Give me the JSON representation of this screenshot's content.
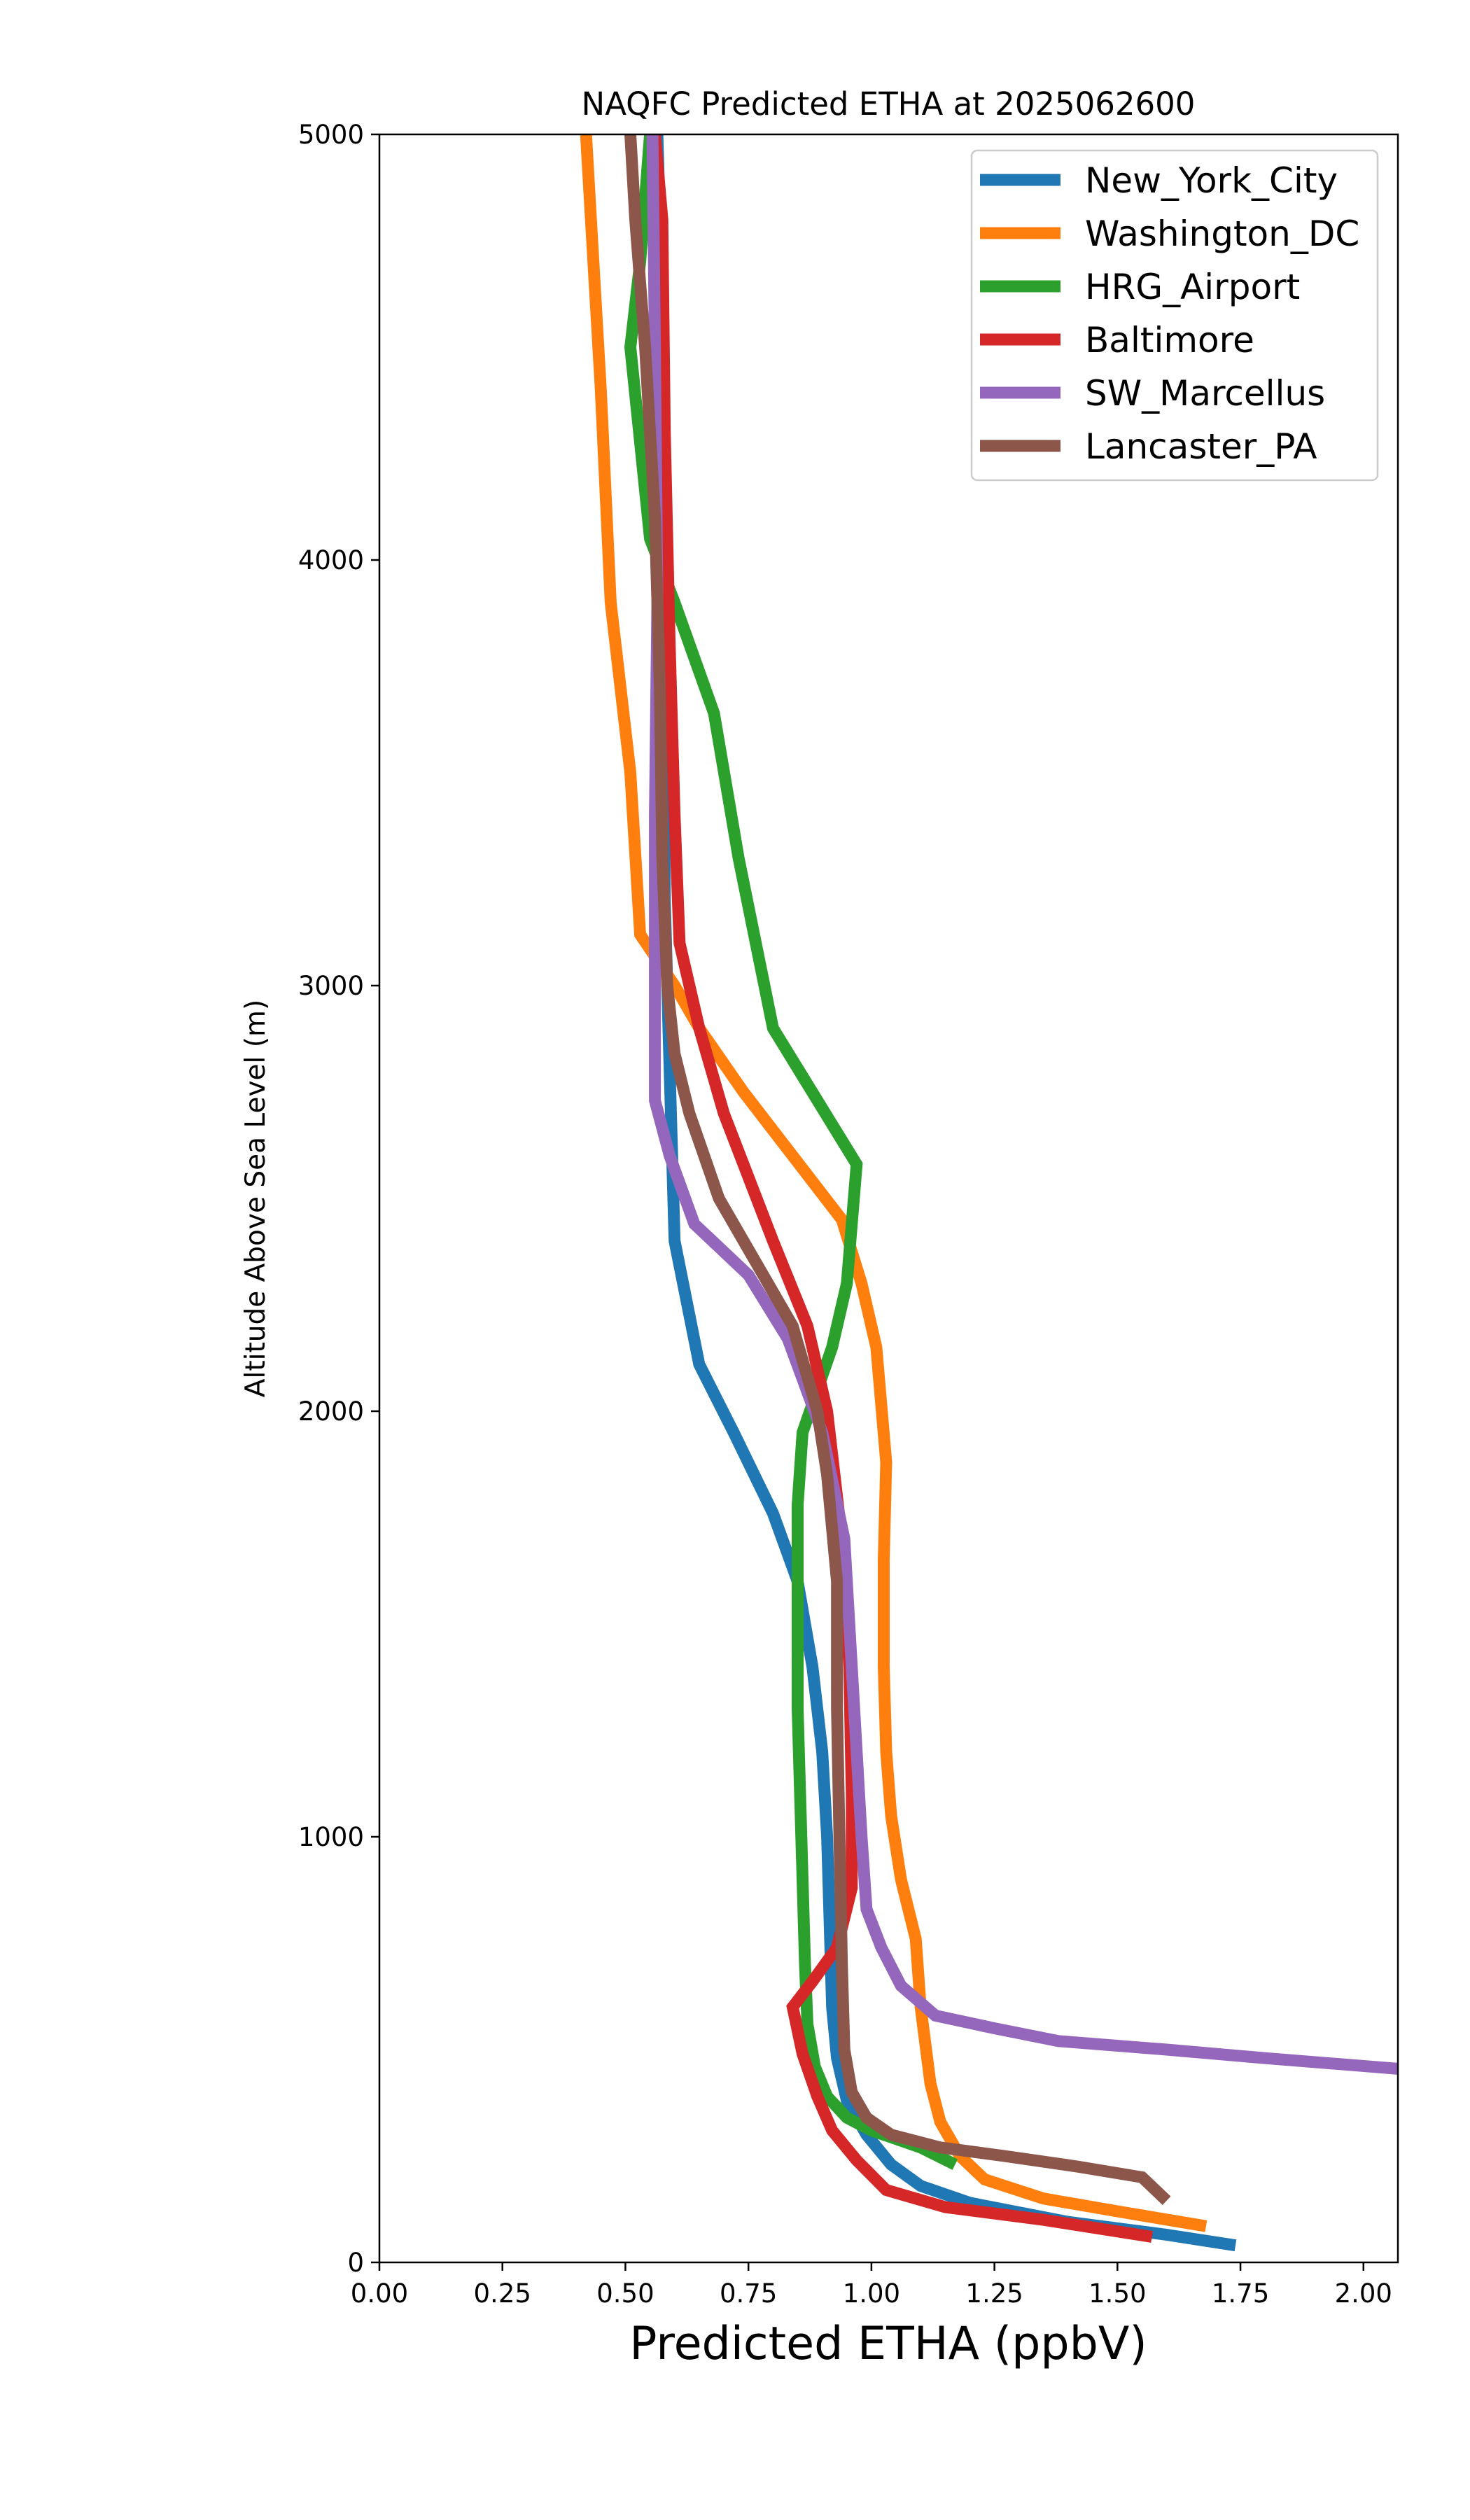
{
  "chart_data": {
    "type": "line",
    "title": "NAQFC Predicted ETHA at 2025062600",
    "xlabel": "Predicted ETHA (ppbV)",
    "ylabel": "Altitude Above Sea Level (m)",
    "xlim": [
      0,
      2.07
    ],
    "ylim": [
      0,
      5000
    ],
    "xticks": [
      0,
      0.25,
      0.5,
      0.75,
      1.0,
      1.25,
      1.5,
      1.75,
      2.0
    ],
    "xtick_labels": [
      "0.00",
      "0.25",
      "0.50",
      "0.75",
      "1.00",
      "1.25",
      "1.50",
      "1.75",
      "2.00"
    ],
    "yticks": [
      0,
      1000,
      2000,
      3000,
      4000,
      5000
    ],
    "ytick_labels": [
      "0",
      "1000",
      "2000",
      "3000",
      "4000",
      "5000"
    ],
    "grid": false,
    "legend_position": "top-right",
    "series": [
      {
        "name": "New_York_City",
        "color": "#1f77b4",
        "points": [
          [
            1.74,
            40
          ],
          [
            1.6,
            65
          ],
          [
            1.4,
            95
          ],
          [
            1.2,
            140
          ],
          [
            1.1,
            180
          ],
          [
            1.04,
            230
          ],
          [
            0.99,
            300
          ],
          [
            0.95,
            380
          ],
          [
            0.93,
            480
          ],
          [
            0.92,
            600
          ],
          [
            0.915,
            800
          ],
          [
            0.91,
            1000
          ],
          [
            0.9,
            1200
          ],
          [
            0.88,
            1400
          ],
          [
            0.85,
            1600
          ],
          [
            0.8,
            1760
          ],
          [
            0.72,
            1950
          ],
          [
            0.65,
            2110
          ],
          [
            0.6,
            2400
          ],
          [
            0.59,
            2800
          ],
          [
            0.58,
            3200
          ],
          [
            0.575,
            4000
          ],
          [
            0.57,
            4800
          ],
          [
            0.565,
            5000
          ]
        ]
      },
      {
        "name": "Washington_DC",
        "color": "#ff7f0e",
        "points": [
          [
            1.68,
            85
          ],
          [
            1.5,
            120
          ],
          [
            1.35,
            150
          ],
          [
            1.23,
            195
          ],
          [
            1.18,
            250
          ],
          [
            1.14,
            330
          ],
          [
            1.12,
            420
          ],
          [
            1.1,
            600
          ],
          [
            1.09,
            760
          ],
          [
            1.06,
            900
          ],
          [
            1.04,
            1050
          ],
          [
            1.03,
            1200
          ],
          [
            1.025,
            1400
          ],
          [
            1.025,
            1650
          ],
          [
            1.03,
            1880
          ],
          [
            1.01,
            2150
          ],
          [
            0.98,
            2300
          ],
          [
            0.94,
            2450
          ],
          [
            0.84,
            2600
          ],
          [
            0.74,
            2750
          ],
          [
            0.65,
            2900
          ],
          [
            0.6,
            3000
          ],
          [
            0.53,
            3120
          ],
          [
            0.51,
            3500
          ],
          [
            0.47,
            3900
          ],
          [
            0.45,
            4400
          ],
          [
            0.43,
            4800
          ],
          [
            0.42,
            5000
          ]
        ]
      },
      {
        "name": "HRG_Airport",
        "color": "#2ca02c",
        "points": [
          [
            1.17,
            230
          ],
          [
            1.1,
            270
          ],
          [
            1.0,
            310
          ],
          [
            0.95,
            340
          ],
          [
            0.91,
            390
          ],
          [
            0.885,
            460
          ],
          [
            0.87,
            560
          ],
          [
            0.865,
            700
          ],
          [
            0.86,
            900
          ],
          [
            0.855,
            1100
          ],
          [
            0.85,
            1300
          ],
          [
            0.85,
            1500
          ],
          [
            0.85,
            1780
          ],
          [
            0.86,
            1950
          ],
          [
            0.92,
            2150
          ],
          [
            0.95,
            2300
          ],
          [
            0.97,
            2580
          ],
          [
            0.8,
            2900
          ],
          [
            0.73,
            3300
          ],
          [
            0.68,
            3640
          ],
          [
            0.6,
            3900
          ],
          [
            0.55,
            4050
          ],
          [
            0.51,
            4500
          ],
          [
            0.53,
            4700
          ],
          [
            0.55,
            5000
          ]
        ]
      },
      {
        "name": "Baltimore",
        "color": "#d62728",
        "points": [
          [
            1.57,
            60
          ],
          [
            1.35,
            100
          ],
          [
            1.15,
            130
          ],
          [
            1.03,
            170
          ],
          [
            0.97,
            240
          ],
          [
            0.92,
            310
          ],
          [
            0.89,
            390
          ],
          [
            0.86,
            490
          ],
          [
            0.84,
            600
          ],
          [
            0.88,
            660
          ],
          [
            0.93,
            740
          ],
          [
            0.96,
            880
          ],
          [
            0.96,
            1100
          ],
          [
            0.955,
            1400
          ],
          [
            0.94,
            1700
          ],
          [
            0.91,
            2000
          ],
          [
            0.87,
            2200
          ],
          [
            0.8,
            2400
          ],
          [
            0.7,
            2700
          ],
          [
            0.65,
            2900
          ],
          [
            0.61,
            3100
          ],
          [
            0.6,
            3400
          ],
          [
            0.59,
            3800
          ],
          [
            0.58,
            4300
          ],
          [
            0.575,
            4800
          ],
          [
            0.56,
            5000
          ]
        ]
      },
      {
        "name": "SW_Marcellus",
        "color": "#9467bd",
        "points": [
          [
            2.07,
            455
          ],
          [
            1.8,
            480
          ],
          [
            1.6,
            500
          ],
          [
            1.38,
            520
          ],
          [
            1.25,
            550
          ],
          [
            1.13,
            580
          ],
          [
            1.06,
            650
          ],
          [
            1.02,
            740
          ],
          [
            0.99,
            830
          ],
          [
            0.98,
            1000
          ],
          [
            0.97,
            1200
          ],
          [
            0.96,
            1400
          ],
          [
            0.945,
            1700
          ],
          [
            0.9,
            1950
          ],
          [
            0.83,
            2170
          ],
          [
            0.75,
            2320
          ],
          [
            0.64,
            2440
          ],
          [
            0.59,
            2600
          ],
          [
            0.56,
            2730
          ],
          [
            0.56,
            3000
          ],
          [
            0.56,
            3400
          ],
          [
            0.565,
            3900
          ],
          [
            0.56,
            4500
          ],
          [
            0.555,
            5000
          ]
        ]
      },
      {
        "name": "Lancaster_PA",
        "color": "#8c564b",
        "points": [
          [
            1.6,
            145
          ],
          [
            1.55,
            200
          ],
          [
            1.42,
            225
          ],
          [
            1.27,
            250
          ],
          [
            1.14,
            270
          ],
          [
            1.04,
            300
          ],
          [
            0.99,
            340
          ],
          [
            0.96,
            400
          ],
          [
            0.945,
            500
          ],
          [
            0.94,
            700
          ],
          [
            0.935,
            1000
          ],
          [
            0.93,
            1300
          ],
          [
            0.93,
            1600
          ],
          [
            0.91,
            1850
          ],
          [
            0.89,
            2000
          ],
          [
            0.84,
            2200
          ],
          [
            0.75,
            2380
          ],
          [
            0.69,
            2500
          ],
          [
            0.63,
            2700
          ],
          [
            0.6,
            2840
          ],
          [
            0.585,
            3000
          ],
          [
            0.575,
            3300
          ],
          [
            0.57,
            3700
          ],
          [
            0.56,
            4100
          ],
          [
            0.54,
            4500
          ],
          [
            0.52,
            4800
          ],
          [
            0.51,
            5000
          ]
        ]
      }
    ]
  }
}
